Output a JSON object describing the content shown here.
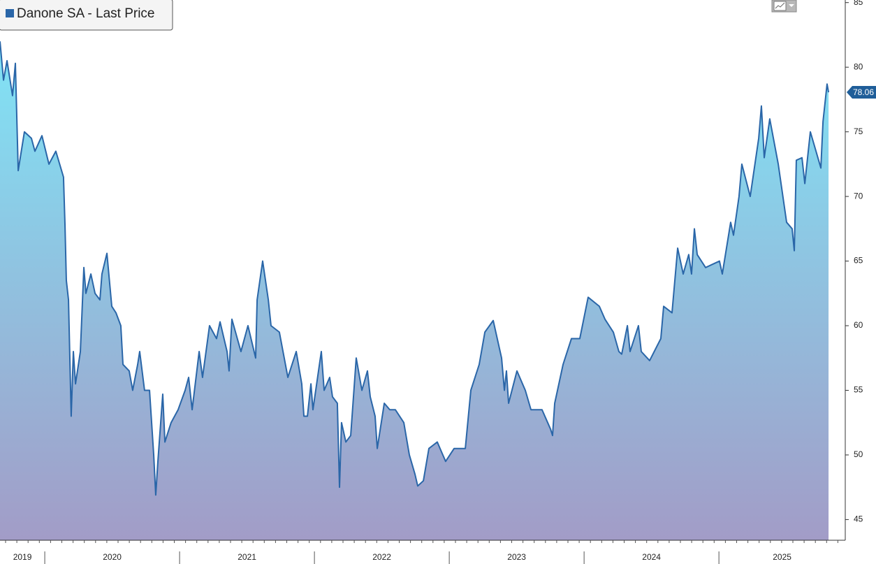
{
  "chart_data": {
    "type": "line",
    "series": [
      {
        "name": "Danone SA - Last Price",
        "color": "#2a66a8",
        "x": [
          2019.668,
          2019.694,
          2019.72,
          2019.761,
          2019.782,
          2019.803,
          2019.849,
          2019.901,
          2019.927,
          2019.979,
          2020.031,
          2020.082,
          2020.139,
          2020.15,
          2020.16,
          2020.176,
          2020.196,
          2020.212,
          2020.228,
          2020.264,
          2020.29,
          2020.305,
          2020.342,
          2020.373,
          2020.409,
          2020.424,
          2020.461,
          2020.497,
          2020.528,
          2020.564,
          2020.58,
          2020.626,
          2020.652,
          2020.689,
          2020.704,
          2020.74,
          2020.777,
          2020.808,
          2020.823,
          2020.839,
          2020.875,
          2020.891,
          2020.937,
          2020.989,
          2021.041,
          2021.067,
          2021.093,
          2021.145,
          2021.17,
          2021.222,
          2021.274,
          2021.3,
          2021.352,
          2021.367,
          2021.388,
          2021.455,
          2021.507,
          2021.564,
          2021.575,
          2021.616,
          2021.658,
          2021.678,
          2021.74,
          2021.803,
          2021.865,
          2021.906,
          2021.922,
          2021.948,
          2021.974,
          2021.989,
          2022.051,
          2022.072,
          2022.113,
          2022.134,
          2022.17,
          2022.186,
          2022.201,
          2022.233,
          2022.269,
          2022.31,
          2022.352,
          2022.393,
          2022.414,
          2022.45,
          2022.466,
          2022.518,
          2022.559,
          2022.6,
          2022.663,
          2022.704,
          2022.746,
          2022.766,
          2022.808,
          2022.849,
          2022.911,
          2022.973,
          2023.036,
          2023.119,
          2023.16,
          2023.222,
          2023.264,
          2023.326,
          2023.388,
          2023.409,
          2023.424,
          2023.44,
          2023.502,
          2023.564,
          2023.606,
          2023.688,
          2023.751,
          2023.766,
          2023.782,
          2023.844,
          2023.906,
          2023.968,
          2024.03,
          2024.113,
          2024.155,
          2024.217,
          2024.258,
          2024.279,
          2024.321,
          2024.341,
          2024.403,
          2024.424,
          2024.486,
          2024.569,
          2024.59,
          2024.652,
          2024.694,
          2024.735,
          2024.776,
          2024.797,
          2024.818,
          2024.839,
          2024.901,
          2025.004,
          2025.025,
          2025.087,
          2025.108,
          2025.149,
          2025.17,
          2025.232,
          2025.295,
          2025.315,
          2025.336,
          2025.377,
          2025.44,
          2025.502,
          2025.543,
          2025.559,
          2025.574,
          2025.616,
          2025.637,
          2025.678,
          2025.72,
          2025.756,
          2025.772,
          2025.802,
          2025.813
        ],
        "values": [
          82,
          79,
          80.5,
          77.8,
          80.3,
          72,
          75,
          74.5,
          73.5,
          74.7,
          72.5,
          73.5,
          71.5,
          67.8,
          63.5,
          62,
          53,
          58,
          55.5,
          58,
          64.5,
          62.5,
          64,
          62.5,
          62,
          64,
          65.6,
          61.5,
          61,
          60,
          57,
          56.5,
          55,
          57,
          58,
          55,
          55,
          50,
          46.9,
          49.5,
          54.7,
          51,
          52.5,
          53.5,
          55,
          56,
          53.5,
          58,
          56,
          60,
          59,
          60.3,
          58,
          56.5,
          60.5,
          58,
          60,
          57.5,
          62,
          65,
          62,
          60,
          59.5,
          56,
          58,
          55.5,
          53,
          53,
          55.5,
          53.5,
          58,
          55,
          56,
          54.5,
          54,
          47.5,
          52.5,
          51,
          51.5,
          57.5,
          55,
          56.5,
          54.5,
          53,
          50.5,
          54,
          53.5,
          53.5,
          52.5,
          50,
          48.5,
          47.6,
          48,
          50.5,
          51,
          49.5,
          50.5,
          50.5,
          55,
          57,
          59.5,
          60.4,
          57.5,
          55,
          56.5,
          54,
          56.5,
          55,
          53.5,
          53.5,
          52,
          51.5,
          54,
          57,
          59,
          59,
          62.2,
          61.5,
          60.5,
          59.5,
          58,
          57.8,
          60,
          58,
          60,
          58,
          57.3,
          59,
          61.5,
          61,
          66,
          64,
          65.5,
          64,
          67.5,
          65.5,
          64.5,
          65,
          64,
          68,
          67,
          70,
          72.5,
          70,
          74.5,
          77,
          73,
          76,
          72.5,
          68,
          67.5,
          65.8,
          72.8,
          73,
          71,
          75,
          73.5,
          72.2,
          75.8,
          78.7,
          78.06
        ]
      }
    ],
    "last_price": 78.06,
    "xlim": [
      2019.668,
      2025.937
    ],
    "xticks": [
      2019,
      2020,
      2021,
      2022,
      2023,
      2024,
      2025
    ],
    "ylim": [
      43.4,
      85.2
    ],
    "yticks": [
      45,
      50,
      55,
      60,
      65,
      70,
      75,
      80,
      85
    ],
    "legend": "upper left"
  }
}
